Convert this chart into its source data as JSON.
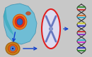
{
  "bg_color": "#c8c8c8",
  "cell_blob_color": "#5ab4d6",
  "arrow_color": "#1040cc",
  "dna_colors_rungs": [
    "#cc2222",
    "#228822",
    "#2222cc",
    "#cccc22",
    "#cc22cc",
    "#22aacc",
    "#cc6622",
    "#8822cc"
  ]
}
